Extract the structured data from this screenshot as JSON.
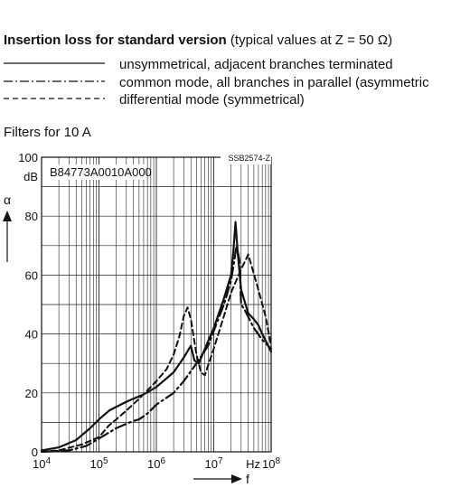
{
  "heading": {
    "bold": "Insertion loss for standard version",
    "normal": " (typical values at Z = 50 Ω)"
  },
  "legend": [
    {
      "label": "unsymmetrical, adjacent branches terminated",
      "style": "solid"
    },
    {
      "label": "common mode, all branches in parallel (asymmetric",
      "style": "dashdot"
    },
    {
      "label": "differential mode (symmetrical)",
      "style": "dashed"
    }
  ],
  "subtitle": "Filters for 10 A",
  "chart_data": {
    "type": "line",
    "title": "",
    "part_number": "B84773A0010A000",
    "figure_code": "SSB2574-Z",
    "y_axis": {
      "symbol": "α",
      "unit": "dB",
      "lim": [
        0,
        100
      ],
      "ticks": [
        0,
        20,
        40,
        60,
        80,
        100
      ]
    },
    "x_axis": {
      "symbol": "f",
      "unit": "Hz",
      "scale": "log",
      "lim": [
        10000,
        100000000
      ],
      "tick_labels": [
        {
          "base": "10",
          "exp": "4"
        },
        {
          "base": "10",
          "exp": "5"
        },
        {
          "base": "10",
          "exp": "6"
        },
        {
          "base": "10",
          "exp": "7"
        },
        {
          "base": "10",
          "exp": "8"
        }
      ]
    },
    "grid": true,
    "series": [
      {
        "style": "solid",
        "color": "#111111",
        "x": [
          10000,
          20000,
          40000,
          70000,
          100000,
          150000,
          300000,
          600000,
          1000000,
          2000000,
          3000000,
          4000000,
          4600000,
          5500000,
          7000000,
          10000000,
          15000000,
          20000000,
          22000000,
          24000000,
          26000000,
          30000000,
          40000000,
          50000000,
          60000000,
          70000000,
          100000000
        ],
        "y": [
          0.5,
          1.5,
          4,
          8,
          11,
          14,
          17,
          19.5,
          22,
          27,
          32,
          36,
          31,
          30,
          35,
          42,
          52,
          60,
          68,
          78,
          68,
          55,
          47,
          45,
          43,
          40,
          34
        ]
      },
      {
        "style": "dashdot",
        "color": "#111111",
        "x": [
          10000,
          30000,
          60000,
          100000,
          200000,
          300000,
          400000,
          500000,
          700000,
          1000000,
          2000000,
          3000000,
          5000000,
          8000000,
          10000000,
          15000000,
          20000000,
          22000000,
          25000000,
          28000000,
          30000000,
          35000000,
          50000000,
          70000000,
          100000000
        ],
        "y": [
          0,
          0.5,
          2,
          4.5,
          8,
          9.5,
          10.5,
          11,
          13,
          16,
          20,
          24,
          30,
          36,
          41,
          50,
          58,
          63,
          70,
          65,
          50,
          48,
          42,
          38,
          35
        ]
      },
      {
        "style": "dashed",
        "color": "#111111",
        "x": [
          10000,
          20000,
          50000,
          100000,
          150000,
          200000,
          300000,
          500000,
          1000000,
          1500000,
          2000000,
          2500000,
          3000000,
          3500000,
          4000000,
          5000000,
          6000000,
          7000000,
          10000000,
          15000000,
          20000000,
          30000000,
          40000000,
          60000000,
          80000000,
          100000000
        ],
        "y": [
          0,
          0.5,
          2.5,
          5,
          9,
          11,
          14,
          18,
          24,
          28,
          33,
          39,
          46,
          49,
          45,
          33,
          27,
          26,
          35,
          46,
          54,
          62,
          67,
          55,
          46,
          36
        ]
      }
    ]
  }
}
